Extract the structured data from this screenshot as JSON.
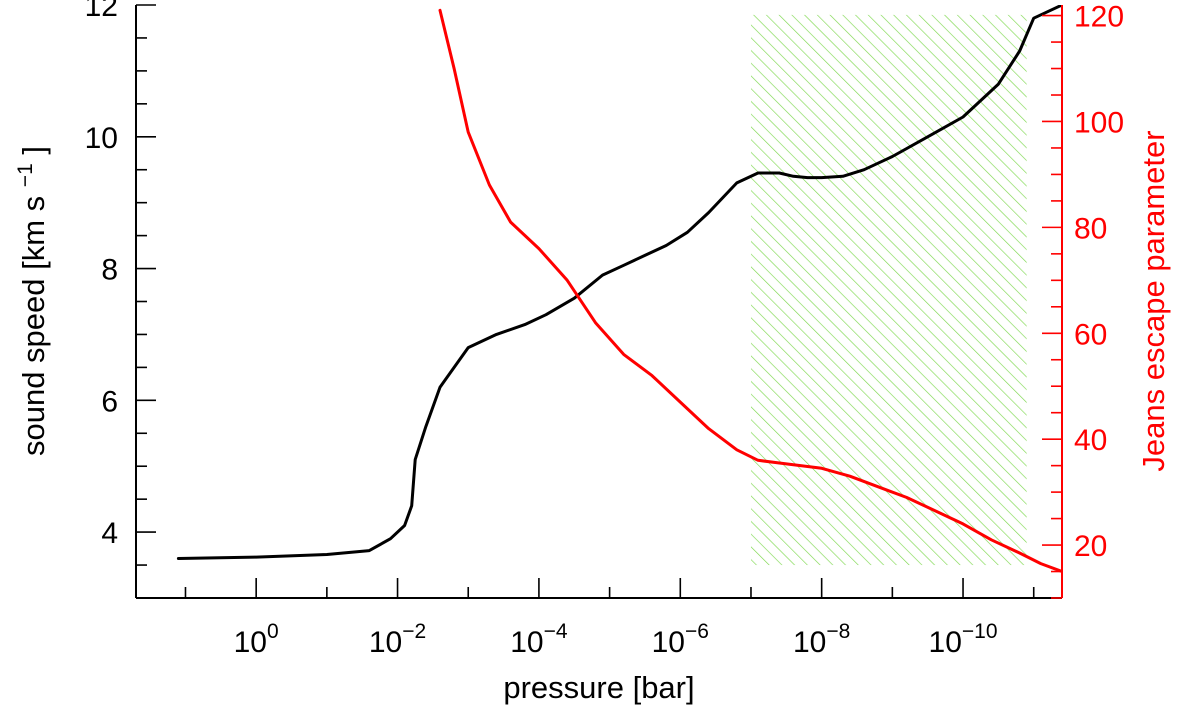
{
  "chart_data": {
    "type": "line",
    "x_axis": {
      "label_main": "pressure [bar]",
      "scale": "log",
      "reversed": true,
      "range_log10": [
        1.7,
        -11.4
      ],
      "major_ticks_log10": [
        0,
        -2,
        -4,
        -6,
        -8,
        -10
      ],
      "tick_labels": [
        {
          "base": "10",
          "exp": "0"
        },
        {
          "base": "10",
          "exp": "−2"
        },
        {
          "base": "10",
          "exp": "−4"
        },
        {
          "base": "10",
          "exp": "−6"
        },
        {
          "base": "10",
          "exp": "−8"
        },
        {
          "base": "10",
          "exp": "−10"
        }
      ]
    },
    "y_left": {
      "label_main": "sound speed [km s",
      "label_exp": "−1",
      "label_end": "]",
      "range": [
        3,
        12
      ],
      "major_ticks": [
        4,
        6,
        8,
        10,
        12
      ],
      "tick_labels": [
        "4",
        "6",
        "8",
        "10",
        "12"
      ],
      "color": "#000000"
    },
    "y_right": {
      "label_main": "Jeans escape parameter",
      "range": [
        10,
        122
      ],
      "major_ticks": [
        20,
        40,
        60,
        80,
        100,
        120
      ],
      "tick_labels": [
        "20",
        "40",
        "60",
        "80",
        "100",
        "120"
      ],
      "color": "#ff0000"
    },
    "series": [
      {
        "axis": "left",
        "color": "#000000",
        "x_log10": [
          1.1,
          0.0,
          -1.0,
          -1.6,
          -1.9,
          -2.1,
          -2.2,
          -2.25,
          -2.4,
          -2.6,
          -3.0,
          -3.4,
          -3.8,
          -4.1,
          -4.5,
          -4.9,
          -5.2,
          -5.5,
          -5.8,
          -6.1,
          -6.4,
          -6.8,
          -7.1,
          -7.4,
          -7.6,
          -7.8,
          -8.0,
          -8.3,
          -8.6,
          -9.0,
          -9.5,
          -10.0,
          -10.5,
          -10.8,
          -11.0,
          -11.4
        ],
        "y": [
          3.6,
          3.62,
          3.66,
          3.72,
          3.9,
          4.1,
          4.4,
          5.1,
          5.6,
          6.2,
          6.8,
          7.0,
          7.15,
          7.3,
          7.55,
          7.9,
          8.05,
          8.2,
          8.35,
          8.55,
          8.85,
          9.3,
          9.45,
          9.45,
          9.4,
          9.38,
          9.38,
          9.4,
          9.5,
          9.7,
          10.0,
          10.3,
          10.8,
          11.3,
          11.8,
          12.0
        ]
      },
      {
        "axis": "right",
        "color": "#ff0000",
        "x_log10": [
          -2.6,
          -2.8,
          -3.0,
          -3.3,
          -3.6,
          -4.0,
          -4.4,
          -4.8,
          -5.2,
          -5.6,
          -6.0,
          -6.4,
          -6.8,
          -7.1,
          -7.4,
          -7.7,
          -8.0,
          -8.4,
          -8.8,
          -9.2,
          -9.6,
          -10.0,
          -10.4,
          -10.8,
          -11.1,
          -11.4
        ],
        "y": [
          121,
          110,
          98,
          88,
          81,
          76,
          70,
          62,
          56,
          52,
          47,
          42,
          38,
          36,
          35.5,
          35,
          34.5,
          33,
          31,
          29,
          26.5,
          24,
          21,
          18.5,
          16.5,
          15
        ]
      }
    ],
    "shaded_region": {
      "x_log10_range": [
        -7.0,
        -10.9
      ],
      "y_range": [
        3.5,
        11.85
      ],
      "pattern": "diagonal-hatch",
      "color": "#7fd850"
    }
  }
}
